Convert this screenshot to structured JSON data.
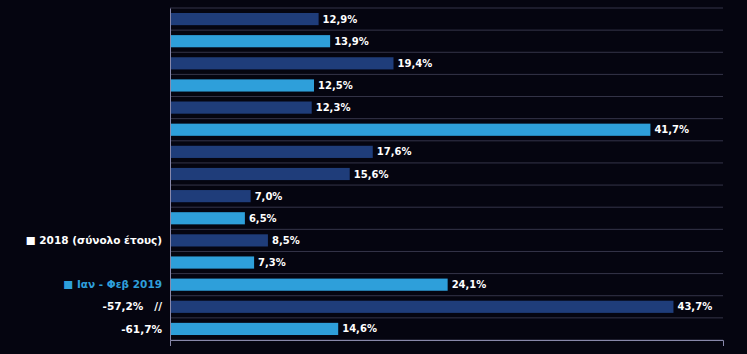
{
  "chart_data": {
    "type": "bar",
    "orientation": "horizontal",
    "categories": [
      null,
      null,
      null,
      null,
      null,
      null,
      null,
      null,
      null,
      null,
      null,
      null,
      null,
      null,
      null
    ],
    "values": [
      12.9,
      13.9,
      19.4,
      12.5,
      12.3,
      41.7,
      17.6,
      15.6,
      7.0,
      6.5,
      8.5,
      7.3,
      24.1,
      43.7,
      14.6
    ],
    "value_labels": [
      "12,9%",
      "13,9%",
      "19,4%",
      "12,5%",
      "12,3%",
      "41,7%",
      "17,6%",
      "15,6%",
      "7,0%",
      "6,5%",
      "8,5%",
      "7,3%",
      "24,1%",
      "43,7%",
      "14,6%"
    ],
    "colors": [
      "#1f3d7a",
      "#2e9fda",
      "#1f3d7a",
      "#2e9fda",
      "#1f3d7a",
      "#2e9fda",
      "#1f3d7a",
      "#1f3d7a",
      "#1f3d7a",
      "#2e9fda",
      "#1f3d7a",
      "#2e9fda",
      "#2e9fda",
      "#1f3d7a",
      "#2e9fda"
    ],
    "data_labels": true,
    "xlim": [
      0,
      48
    ],
    "tick_labels": false,
    "grid": true,
    "annotations": [
      {
        "row": 10,
        "text": "■ 2018 (σύνολο έτους)",
        "color": "white"
      },
      {
        "row": 12,
        "text": "■ Ιαν - Φεβ 2019",
        "color": "#2e9fda"
      },
      {
        "row": 13,
        "text": "-57,2%   //",
        "color": "white"
      },
      {
        "row": 14,
        "text": "-61,7%",
        "color": "white"
      }
    ]
  }
}
